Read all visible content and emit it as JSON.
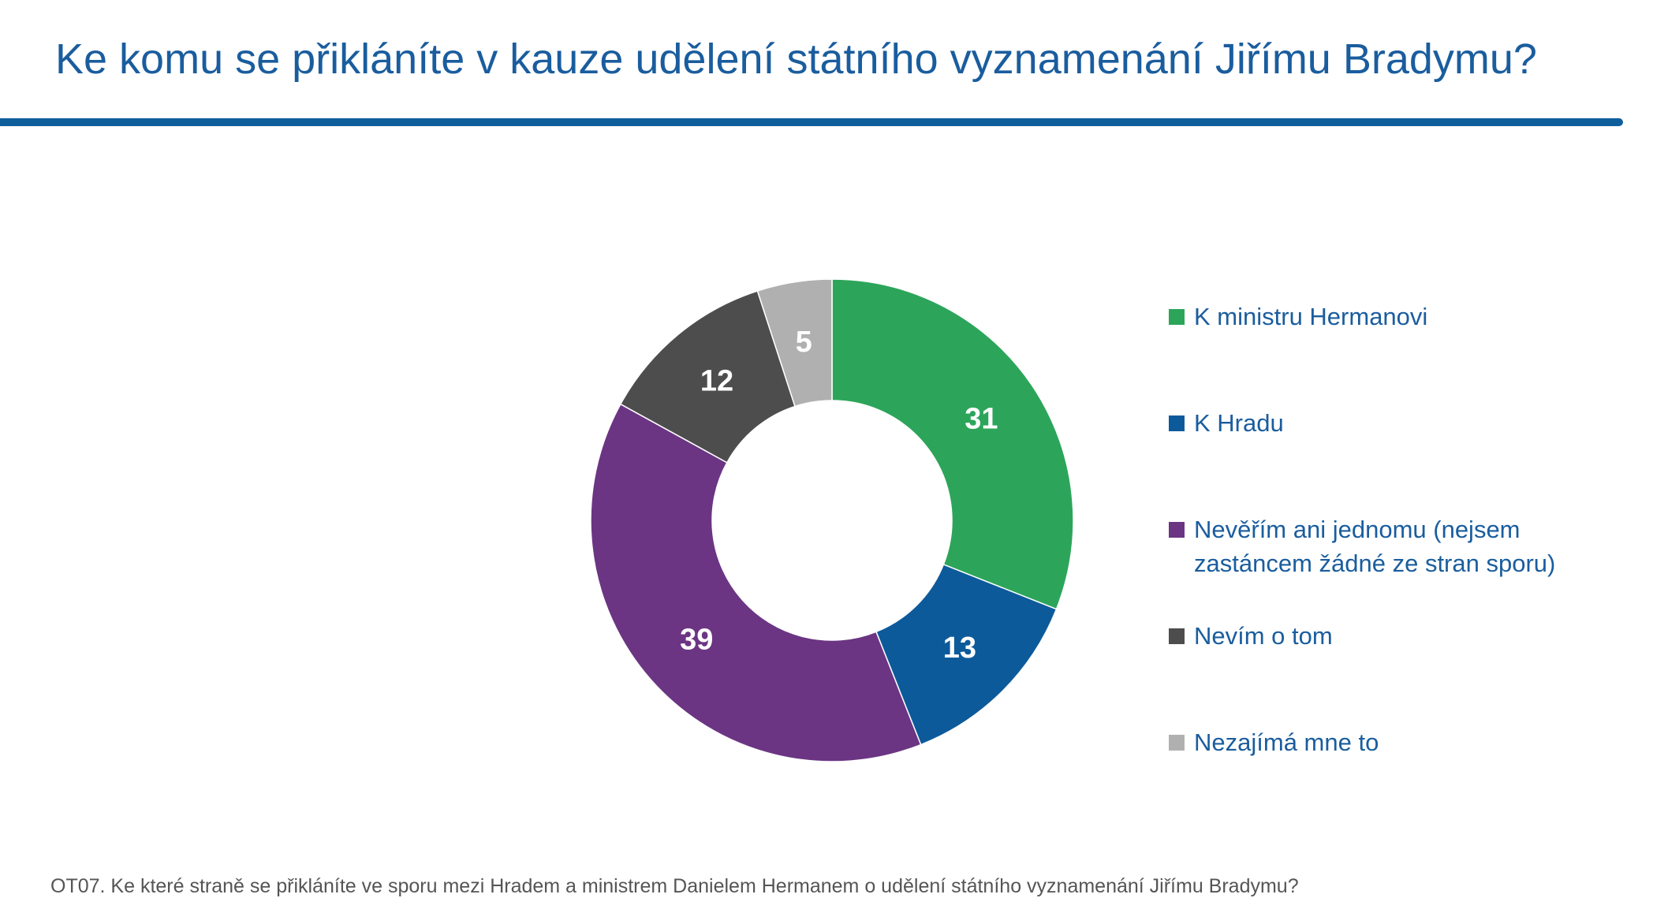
{
  "header": {
    "title": "Ke komu se přikláníte v kauze udělení státního vyznamenání Jiřímu Bradymu?"
  },
  "footnote": "OT07. Ke které straně se přikláníte ve sporu mezi Hradem a ministrem Danielem Hermanem o udělení státního vyznamenání Jiřímu Bradymu?",
  "chart_data": {
    "type": "pie",
    "variant": "donut",
    "categories": [
      "K ministru Hermanovi",
      "K Hradu",
      "Nevěřím ani jednomu (nejsem zastáncem žádné ze stran sporu)",
      "Nevím o tom",
      "Nezajímá mne to"
    ],
    "values": [
      31,
      13,
      39,
      12,
      5
    ],
    "colors": [
      "#2ca55a",
      "#0d5a9b",
      "#6b3583",
      "#4d4d4d",
      "#b0b0b0"
    ],
    "label_colors": [
      "#ffffff",
      "#ffffff",
      "#ffffff",
      "#ffffff",
      "#ffffff"
    ],
    "legend_position": "right"
  }
}
